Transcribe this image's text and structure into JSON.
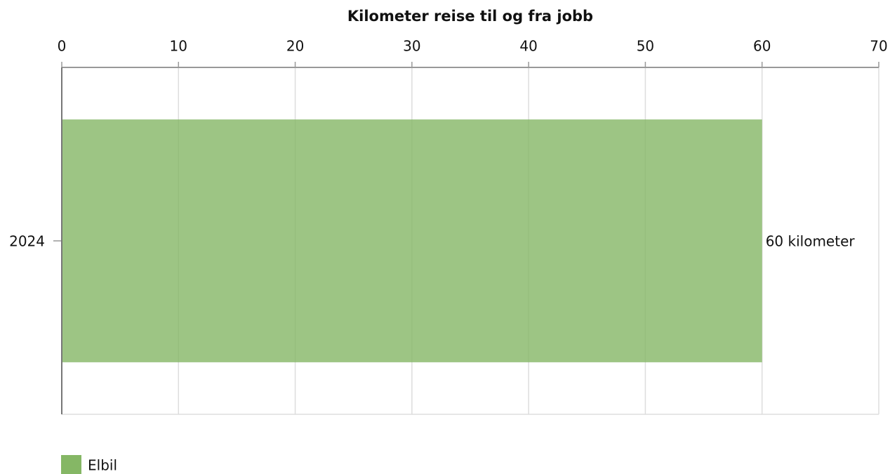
{
  "chart_data": {
    "type": "bar",
    "orientation": "horizontal",
    "title": "Kilometer reise til og fra jobb",
    "categories": [
      "2024"
    ],
    "series": [
      {
        "name": "Elbil",
        "color": "#85b765",
        "values": [
          60
        ],
        "value_labels": [
          "60 kilometer"
        ]
      }
    ],
    "xlim": [
      0,
      70
    ],
    "xticks": [
      0,
      10,
      20,
      30,
      40,
      50,
      60,
      70
    ],
    "grid": true,
    "legend": "bottom-left"
  }
}
